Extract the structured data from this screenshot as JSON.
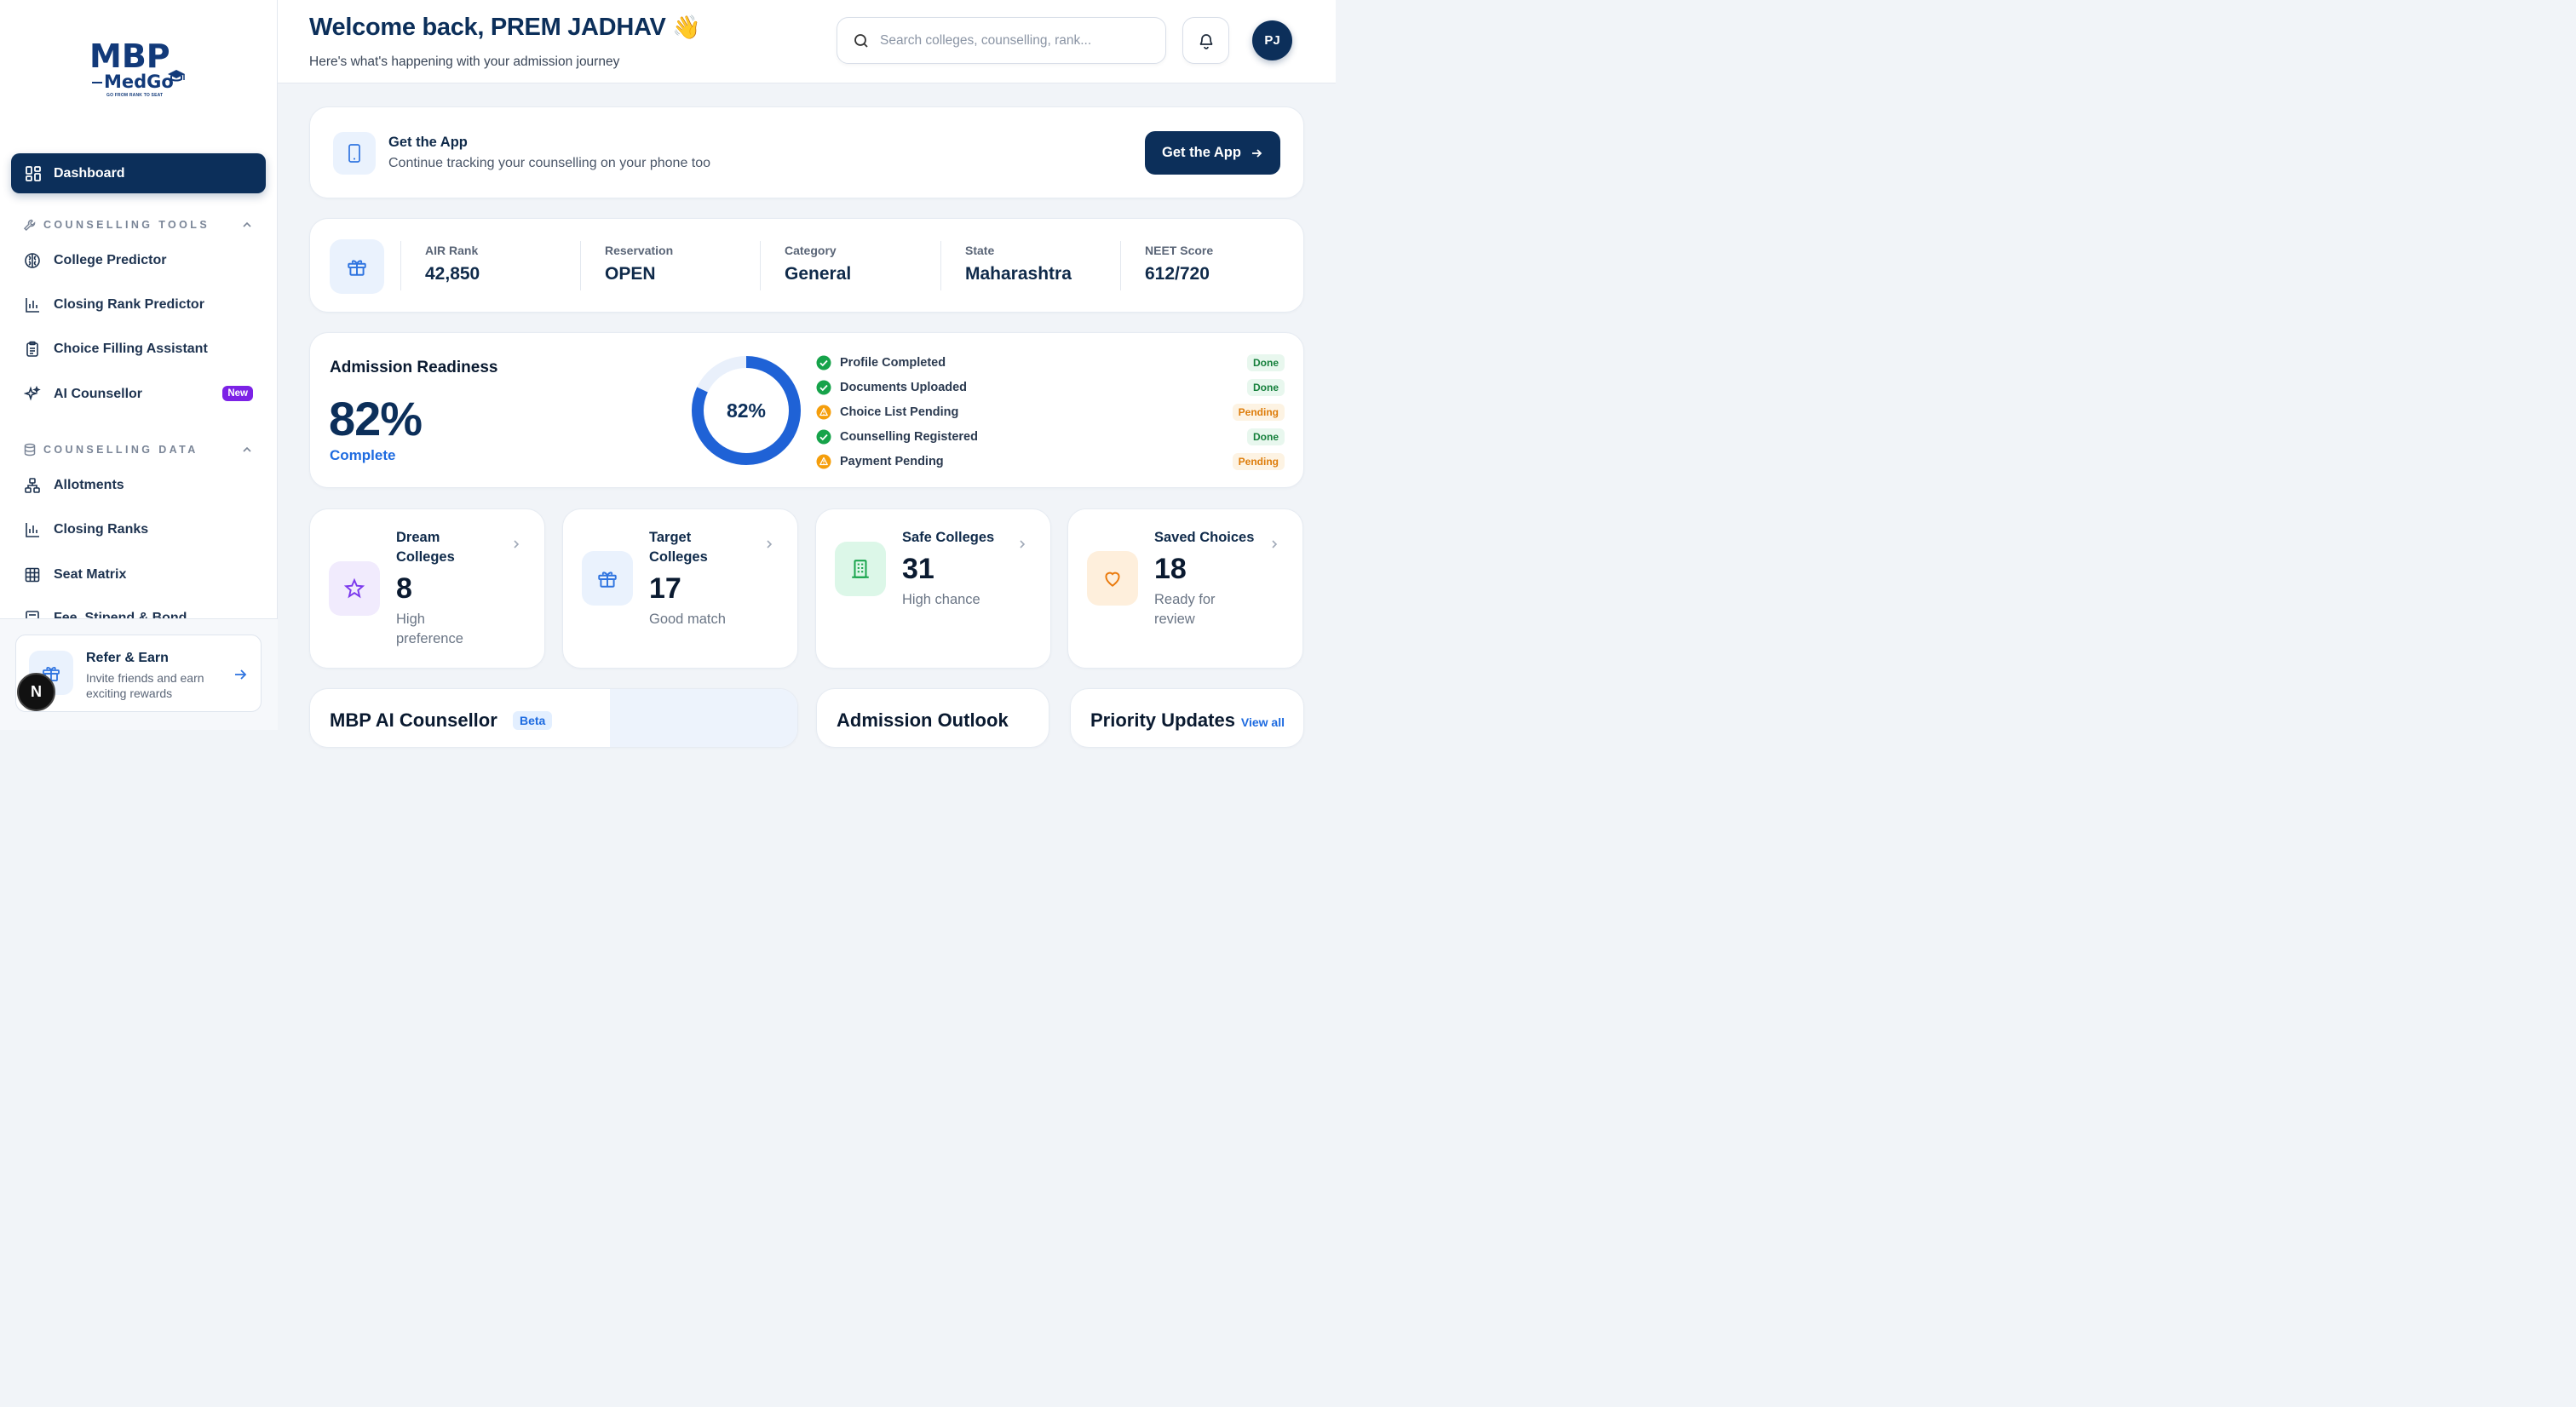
{
  "brand": {
    "logo_main": "MBP",
    "logo_sub": "MedGo",
    "tagline": "GO FROM RANK TO SEAT"
  },
  "sidebar": {
    "dashboard_label": "Dashboard",
    "sections": [
      {
        "title": "COUNSELLING TOOLS",
        "items": [
          {
            "label": "College Predictor",
            "icon": "brain-icon"
          },
          {
            "label": "Closing Rank Predictor",
            "icon": "bar-chart-icon"
          },
          {
            "label": "Choice Filling Assistant",
            "icon": "clipboard-list-icon"
          },
          {
            "label": "AI Counsellor",
            "icon": "sparkles-icon",
            "badge": "New"
          }
        ]
      },
      {
        "title": "COUNSELLING DATA",
        "items": [
          {
            "label": "Allotments",
            "icon": "network-icon"
          },
          {
            "label": "Closing Ranks",
            "icon": "bar-chart-icon"
          },
          {
            "label": "Seat Matrix",
            "icon": "grid-icon"
          },
          {
            "label": "Fee, Stipend & Bond",
            "icon": "receipt-icon"
          }
        ]
      }
    ],
    "refer": {
      "title": "Refer & Earn",
      "desc": "Invite friends and earn exciting rewards"
    },
    "floating_badge": "N"
  },
  "header": {
    "welcome": "Welcome back, PREM JADHAV",
    "wave": "👋",
    "subtitle": "Here's what's happening with your admission journey",
    "search_placeholder": "Search colleges, counselling, rank...",
    "avatar_initials": "PJ"
  },
  "app_banner": {
    "title": "Get the App",
    "desc": "Continue tracking your counselling on your phone too",
    "button": "Get the App"
  },
  "stats": [
    {
      "label": "AIR Rank",
      "value": "42,850"
    },
    {
      "label": "Reservation",
      "value": "OPEN"
    },
    {
      "label": "Category",
      "value": "General"
    },
    {
      "label": "State",
      "value": "Maharashtra"
    },
    {
      "label": "NEET Score",
      "value": "612/720"
    }
  ],
  "readiness": {
    "title": "Admission Readiness",
    "percent_text": "82%",
    "percent_value": 82,
    "complete_label": "Complete",
    "checklist": [
      {
        "label": "Profile Completed",
        "status": "Done",
        "state": "done"
      },
      {
        "label": "Documents Uploaded",
        "status": "Done",
        "state": "done"
      },
      {
        "label": "Choice List Pending",
        "status": "Pending",
        "state": "pending"
      },
      {
        "label": "Counselling Registered",
        "status": "Done",
        "state": "done"
      },
      {
        "label": "Payment Pending",
        "status": "Pending",
        "state": "pending"
      }
    ]
  },
  "summary_cards": [
    {
      "title": "Dream Colleges",
      "number": "8",
      "sub": "High preference",
      "icon": "star-icon"
    },
    {
      "title": "Target Colleges",
      "number": "17",
      "sub": "Good match",
      "icon": "gift-icon"
    },
    {
      "title": "Safe Colleges",
      "number": "31",
      "sub": "High chance",
      "icon": "building-icon"
    },
    {
      "title": "Saved Choices",
      "number": "18",
      "sub": "Ready for review",
      "icon": "heart-icon"
    }
  ],
  "bottom_cards": {
    "ai_title": "MBP AI Counsellor",
    "ai_badge": "Beta",
    "outlook_title": "Admission Outlook",
    "updates_title": "Priority Updates",
    "view_all": "View all"
  },
  "colors": {
    "primary": "#0c2f5a",
    "accent": "#1e6be0",
    "done": "#16a34a",
    "pending": "#f59e0b",
    "new_badge": "#7c22e6"
  }
}
